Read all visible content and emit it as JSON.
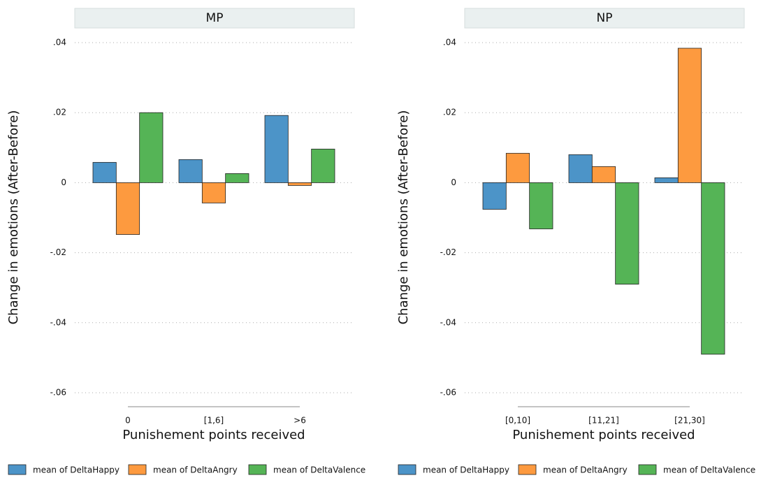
{
  "chart_data": [
    {
      "type": "bar",
      "title": "MP",
      "categories": [
        "0",
        "[1,6]",
        ">6"
      ],
      "xlabel": "Punishement points received",
      "ylabel": "Change in emotions (After-Before)",
      "series": [
        {
          "name": "mean of DeltaHappy",
          "color": "#4c94c8",
          "values": [
            0.0058,
            0.0066,
            0.0192
          ]
        },
        {
          "name": "mean of DeltaAngry",
          "color": "#fd9a3f",
          "values": [
            -0.0148,
            -0.0058,
            -0.0008
          ]
        },
        {
          "name": "mean of DeltaValence",
          "color": "#55b456",
          "values": [
            0.02,
            0.0026,
            0.0096
          ]
        }
      ],
      "ylim": [
        -0.06,
        0.04
      ],
      "yticks": [
        {
          "value": 0.04,
          "label": ".04"
        },
        {
          "value": 0.02,
          "label": ".02"
        },
        0,
        {
          "value": -0.02,
          "label": "-.02"
        },
        {
          "value": -0.04,
          "label": "-.04"
        },
        {
          "value": -0.06,
          "label": "-.06"
        }
      ],
      "grid": true,
      "legend": "bottom"
    },
    {
      "type": "bar",
      "title": "NP",
      "categories": [
        "[0,10]",
        "[11,21]",
        "[21,30]"
      ],
      "xlabel": "Punishement points received",
      "ylabel": "Change in emotions (After-Before)",
      "series": [
        {
          "name": "mean of DeltaHappy",
          "color": "#4c94c8",
          "values": [
            -0.0076,
            0.008,
            0.0014
          ]
        },
        {
          "name": "mean of DeltaAngry",
          "color": "#fd9a3f",
          "values": [
            0.0084,
            0.0046,
            0.0384
          ]
        },
        {
          "name": "mean of DeltaValence",
          "color": "#55b456",
          "values": [
            -0.0132,
            -0.029,
            -0.049
          ]
        }
      ],
      "ylim": [
        -0.06,
        0.04
      ],
      "yticks": [
        {
          "value": 0.04,
          "label": ".04"
        },
        {
          "value": 0.02,
          "label": ".02"
        },
        0,
        {
          "value": -0.02,
          "label": "-.02"
        },
        {
          "value": -0.04,
          "label": "-.04"
        },
        {
          "value": -0.06,
          "label": "-.06"
        }
      ],
      "grid": true,
      "legend": "bottom"
    }
  ]
}
